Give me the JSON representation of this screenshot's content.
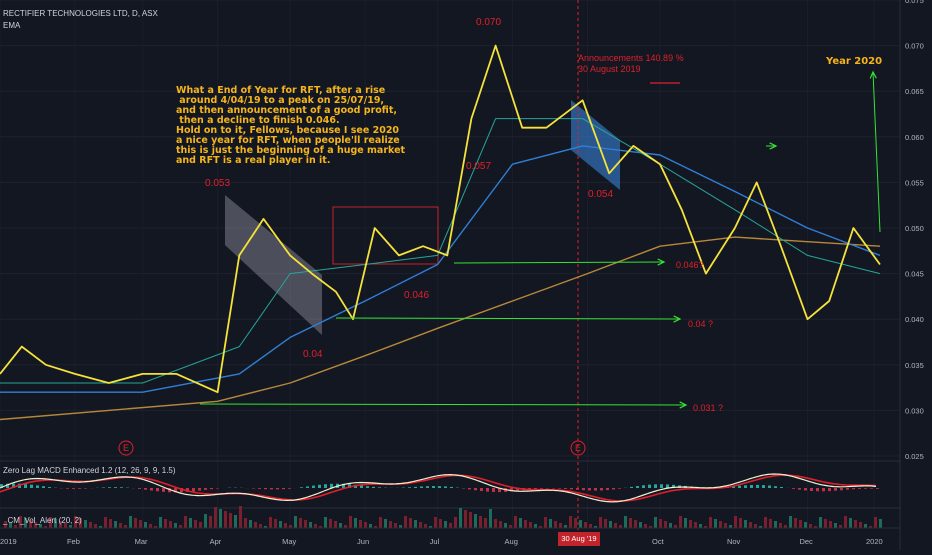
{
  "header": {
    "symbol": "RECTIFIER TECHNOLOGIES LTD, D, ASX",
    "indicator": "EMA",
    "macd_label": "Zero Lag MACD Enhanced 1.2 (12, 26, 9, 9, 1.5)",
    "vol_label": "_CM_Vol_Alert (20, 2)"
  },
  "note_text": "What a End of Year for RFT, after a rise\n around 4/04/19 to a peak on 25/07/19,\nand then announcement of a good profit,\n then a decline to finish 0.046.\nHold on to it, Fellows, because I see 2020\na nice year for RFT, when people'll realize\nthis is just the beginning of a huge market\nand RFT is a real player in it.",
  "year_label": "Year 2020",
  "announcement": "Announcements 140.89 %\n30 August 2019",
  "date_badge": "30 Aug '19",
  "earnings_marker": "E",
  "colors": {
    "background": "#131722",
    "price": "#f5e23a",
    "ema_fast": "#26a69a",
    "ema_mid": "#2f7fd6",
    "ema_slow": "#b8883a",
    "annotation": "#e0202a",
    "arrows": "#33e533",
    "macd": "#f2f2f2",
    "signal": "#e0202a"
  },
  "chart_data": {
    "type": "line",
    "title": "RECTIFIER TECHNOLOGIES LTD, D, ASX",
    "ylim": [
      0.025,
      0.075
    ],
    "y_ticks": [
      "0.075",
      "0.070",
      "0.065",
      "0.060",
      "0.055",
      "0.050",
      "0.045",
      "0.040",
      "0.035",
      "0.030",
      "0.025"
    ],
    "x_ticks": [
      "2019",
      "Feb",
      "Mar",
      "Apr",
      "May",
      "Jun",
      "Jul",
      "Aug",
      "Sep",
      "Oct",
      "Nov",
      "Dec",
      "2020"
    ],
    "scale": "linear",
    "series": [
      {
        "name": "Price",
        "x": [
          "2019-01-01",
          "2019-01-10",
          "2019-01-20",
          "2019-02-01",
          "2019-02-15",
          "2019-03-01",
          "2019-03-15",
          "2019-04-01",
          "2019-04-10",
          "2019-04-20",
          "2019-05-01",
          "2019-05-10",
          "2019-05-20",
          "2019-05-27",
          "2019-06-05",
          "2019-06-15",
          "2019-06-25",
          "2019-07-05",
          "2019-07-15",
          "2019-07-25",
          "2019-08-05",
          "2019-08-15",
          "2019-08-30",
          "2019-09-10",
          "2019-09-20",
          "2019-10-01",
          "2019-10-10",
          "2019-10-20",
          "2019-11-01",
          "2019-11-10",
          "2019-11-20",
          "2019-12-01",
          "2019-12-10",
          "2019-12-20",
          "2019-12-31"
        ],
        "values": [
          0.034,
          0.037,
          0.035,
          0.034,
          0.033,
          0.034,
          0.034,
          0.032,
          0.047,
          0.051,
          0.047,
          0.045,
          0.043,
          0.04,
          0.05,
          0.047,
          0.048,
          0.047,
          0.062,
          0.07,
          0.061,
          0.061,
          0.064,
          0.056,
          0.059,
          0.057,
          0.052,
          0.045,
          0.05,
          0.055,
          0.048,
          0.04,
          0.042,
          0.05,
          0.046
        ]
      },
      {
        "name": "EMA fast",
        "x": [
          "2019-01-01",
          "2019-03-01",
          "2019-04-10",
          "2019-05-01",
          "2019-06-01",
          "2019-07-01",
          "2019-07-25",
          "2019-08-30",
          "2019-10-01",
          "2019-11-01",
          "2019-12-01",
          "2019-12-31"
        ],
        "values": [
          0.033,
          0.033,
          0.037,
          0.045,
          0.046,
          0.047,
          0.062,
          0.062,
          0.057,
          0.052,
          0.047,
          0.045
        ]
      },
      {
        "name": "EMA mid",
        "x": [
          "2019-01-01",
          "2019-03-01",
          "2019-04-10",
          "2019-05-01",
          "2019-06-01",
          "2019-07-01",
          "2019-08-01",
          "2019-08-30",
          "2019-10-01",
          "2019-11-01",
          "2019-12-01",
          "2019-12-31"
        ],
        "values": [
          0.032,
          0.032,
          0.034,
          0.038,
          0.042,
          0.046,
          0.057,
          0.059,
          0.058,
          0.054,
          0.05,
          0.047
        ]
      },
      {
        "name": "EMA slow",
        "x": [
          "2019-01-01",
          "2019-04-01",
          "2019-05-01",
          "2019-06-01",
          "2019-07-01",
          "2019-08-01",
          "2019-09-01",
          "2019-10-01",
          "2019-11-01",
          "2019-12-01",
          "2019-12-31"
        ],
        "values": [
          0.029,
          0.031,
          0.033,
          0.036,
          0.039,
          0.042,
          0.045,
          0.048,
          0.049,
          0.0485,
          0.048
        ]
      }
    ],
    "annotations": [
      {
        "text": "0.070"
      },
      {
        "text": "0.053"
      },
      {
        "text": "0.057"
      },
      {
        "text": "0.054"
      },
      {
        "text": "0.046"
      },
      {
        "text": "0.04"
      },
      {
        "text": "0.046?"
      },
      {
        "text": "0.04 ?"
      },
      {
        "text": "0.031 ?"
      }
    ]
  }
}
